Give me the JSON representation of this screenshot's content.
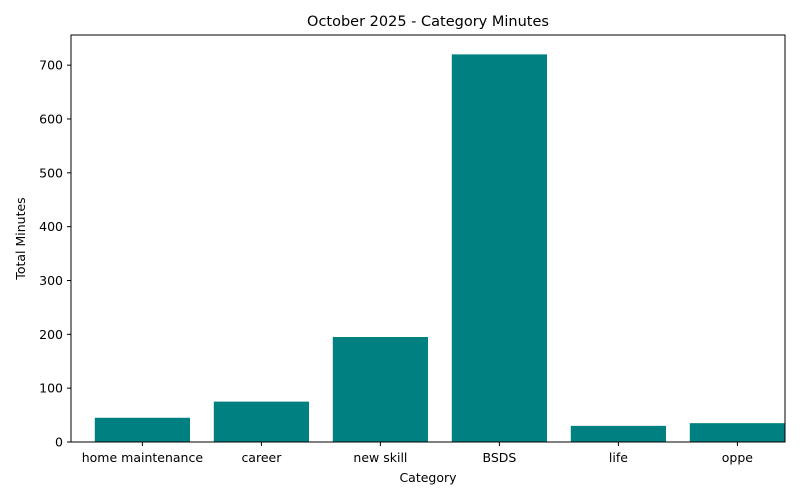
{
  "chart_data": {
    "type": "bar",
    "title": "October 2025 - Category Minutes",
    "xlabel": "Category",
    "ylabel": "Total Minutes",
    "categories": [
      "home maintenance",
      "career",
      "new skill",
      "BSDS",
      "life",
      "oppe"
    ],
    "values": [
      45,
      75,
      195,
      720,
      30,
      35
    ],
    "ylim": [
      0,
      756
    ],
    "yticks": [
      0,
      100,
      200,
      300,
      400,
      500,
      600,
      700
    ],
    "bar_color": "#008080",
    "grid": false,
    "legend": "none"
  }
}
